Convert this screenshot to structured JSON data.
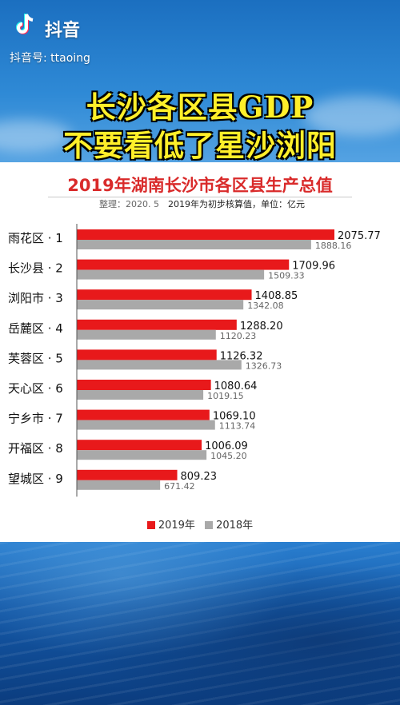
{
  "app": {
    "name": "抖音",
    "account": "抖音号: ttaoing"
  },
  "headline": {
    "line1": "长沙各区县GDP",
    "line2": "不要看低了星沙浏阳"
  },
  "chart_data": {
    "type": "bar",
    "title": "2019年湖南长沙市各区县生产总值",
    "note_left": "整理：2020. 5",
    "note_right": "2019年为初步核算值，单位：亿元",
    "categories": [
      "雨花区 · 1",
      "长沙县 · 2",
      "浏阳市 · 3",
      "岳麓区 · 4",
      "芙蓉区 · 5",
      "天心区 · 6",
      "宁乡市 · 7",
      "开福区 · 8",
      "望城区 · 9"
    ],
    "series": [
      {
        "name": "2019年",
        "color": "#e8191b",
        "values": [
          2075.77,
          1709.96,
          1408.85,
          1288.2,
          1126.32,
          1080.64,
          1069.1,
          1006.09,
          809.23
        ],
        "labels": [
          "2075.77",
          "1709.96",
          "1408.85",
          "1288.20",
          "1126.32",
          "1080.64",
          "1069.10",
          "1006.09",
          "809.23"
        ]
      },
      {
        "name": "2018年",
        "color": "#a9a9a9",
        "values": [
          1888.16,
          1509.33,
          1342.08,
          1120.23,
          1326.73,
          1019.15,
          1113.74,
          1045.2,
          671.42
        ],
        "labels": [
          "1888.16",
          "1509.33",
          "1342.08",
          "1120.23",
          "1326.73",
          "1019.15",
          "1113.74",
          "1045.20",
          "671.42"
        ]
      }
    ],
    "xlim": [
      0,
      2075.77
    ],
    "grid": false,
    "legend_position": "bottom-center"
  }
}
